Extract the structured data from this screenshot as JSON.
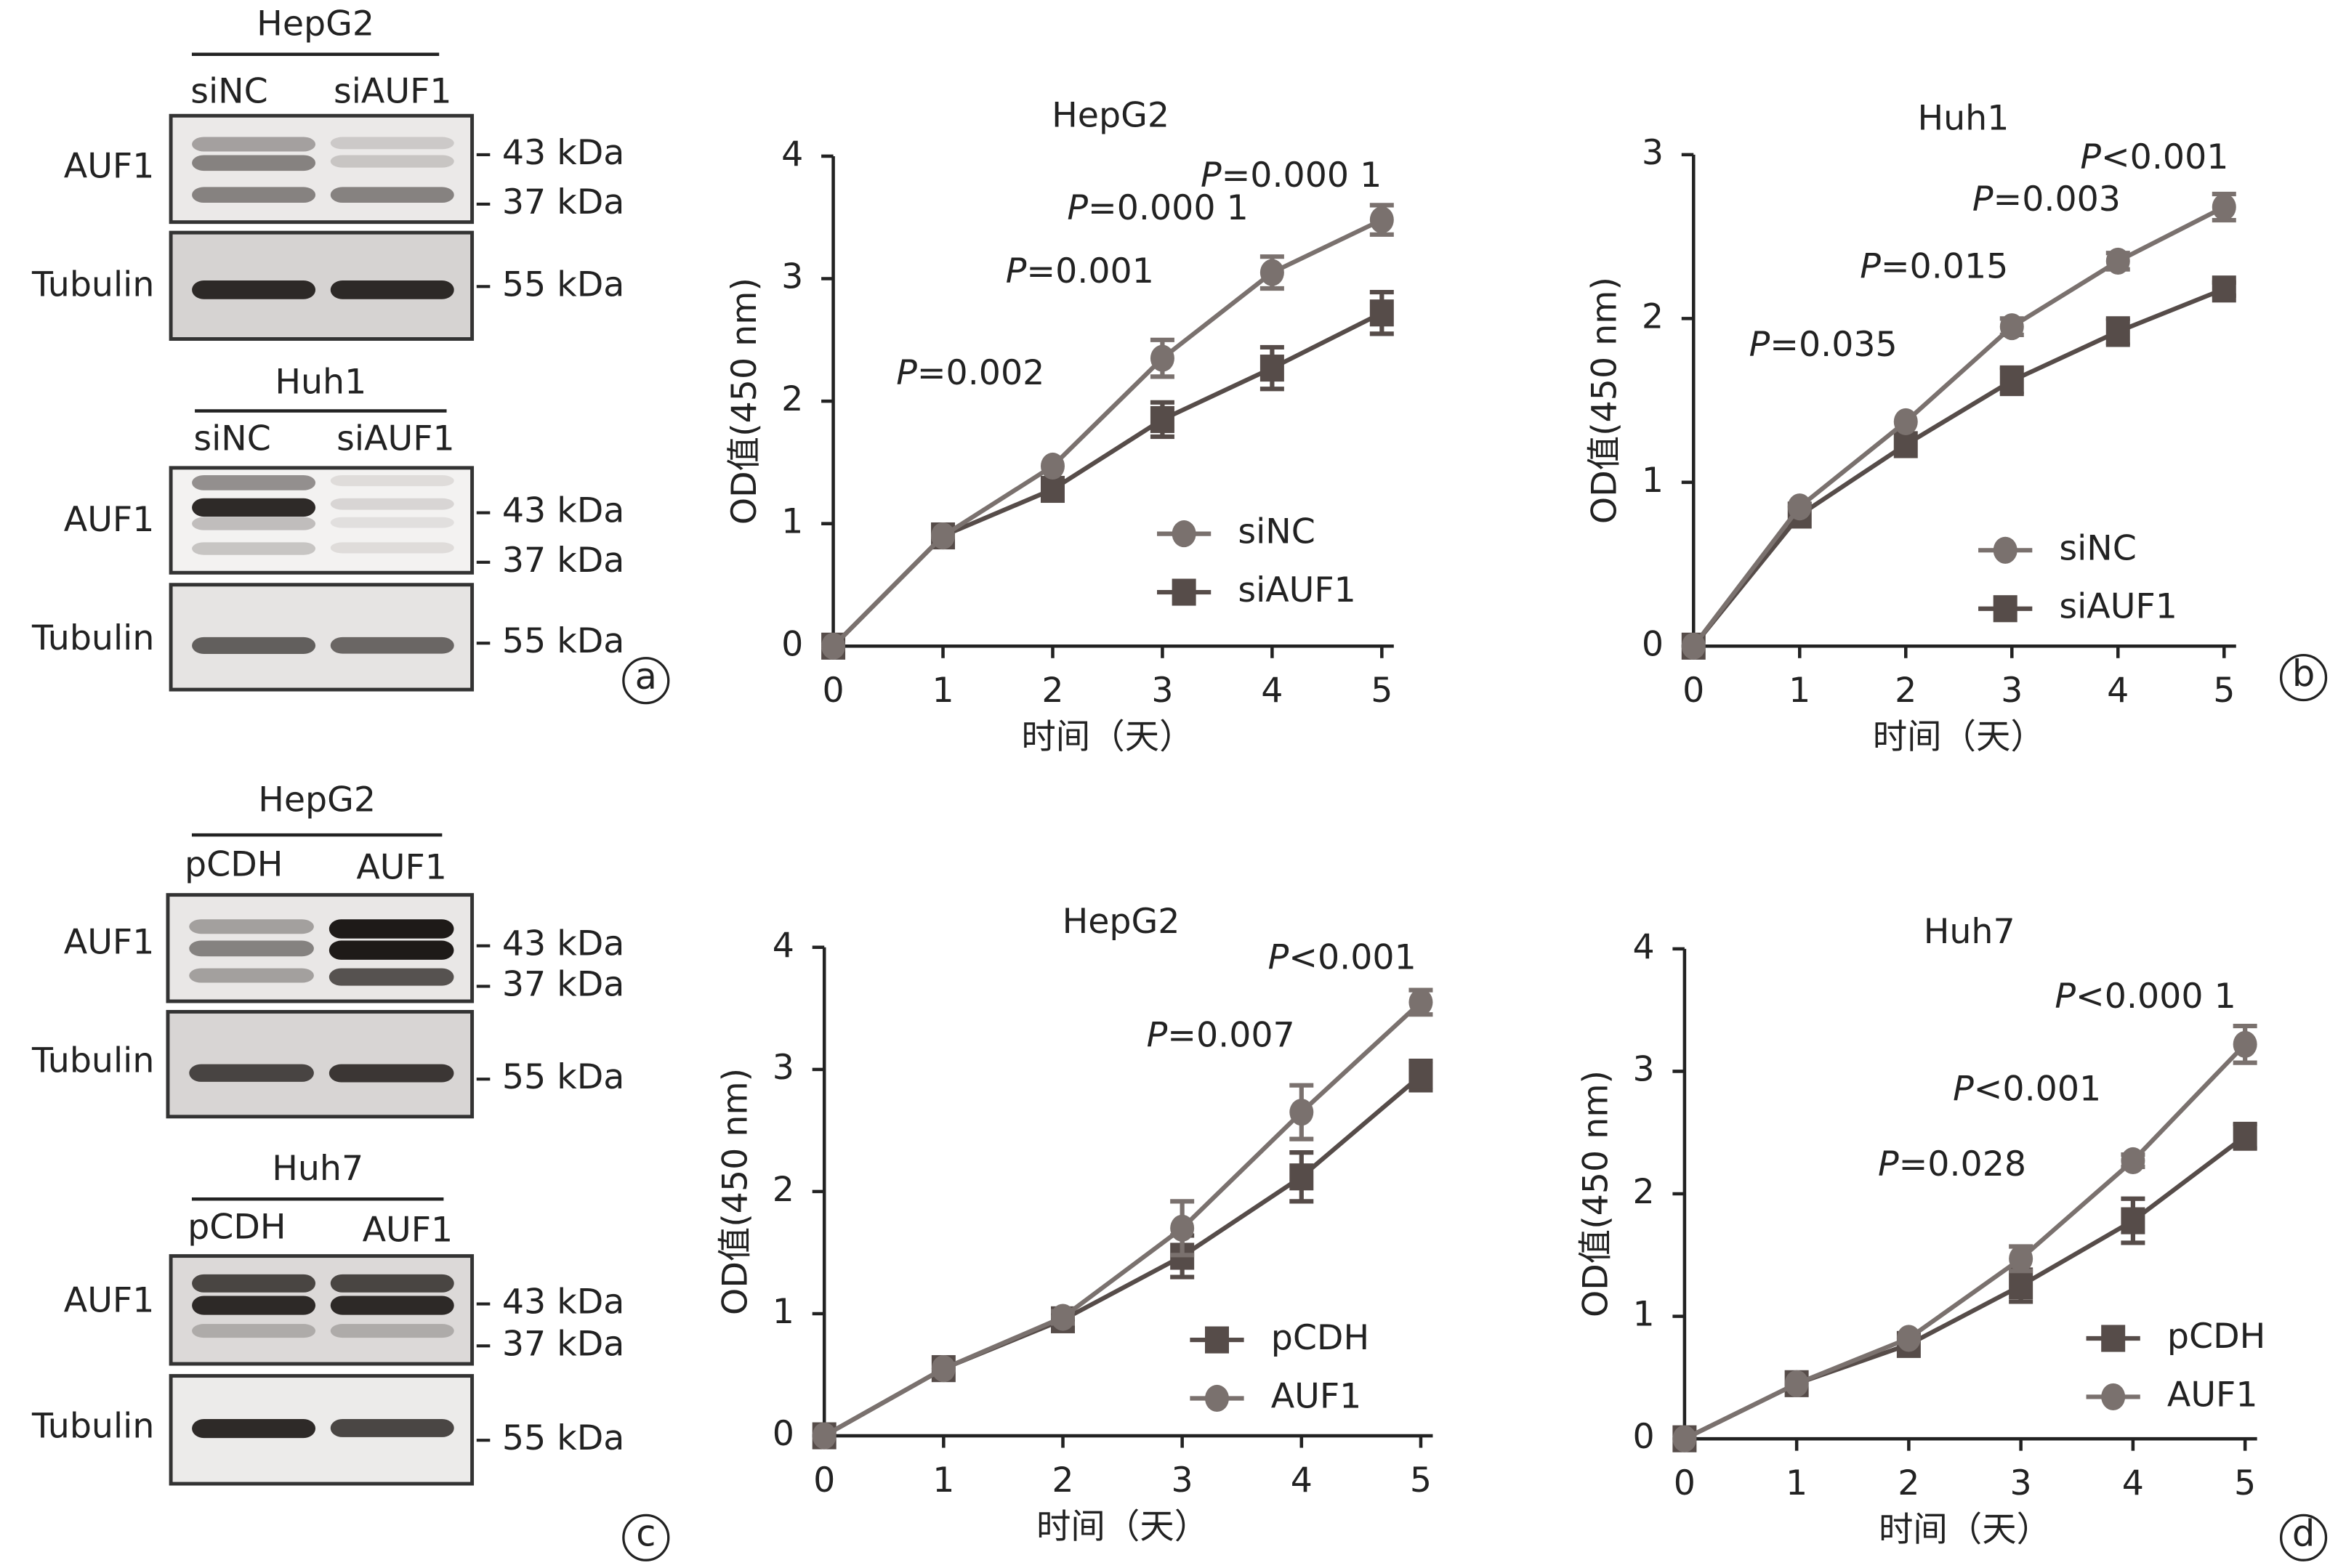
{
  "colors": {
    "circle_series": "#7a716e",
    "square_series": "#564c49",
    "text": "#222222"
  },
  "blots": [
    {
      "title": "HepG2",
      "lanes": [
        "siNC",
        "siAUF1"
      ],
      "rows": [
        {
          "label": "AUF1",
          "markers": [
            "43 kDa",
            "37 kDa"
          ]
        },
        {
          "label": "Tubulin",
          "markers": [
            "55 kDa"
          ]
        }
      ]
    },
    {
      "title": "Huh1",
      "lanes": [
        "siNC",
        "siAUF1"
      ],
      "rows": [
        {
          "label": "AUF1",
          "markers": [
            "43 kDa",
            "37 kDa"
          ]
        },
        {
          "label": "Tubulin",
          "markers": [
            "55 kDa"
          ]
        }
      ]
    },
    {
      "title": "HepG2",
      "lanes": [
        "pCDH",
        "AUF1"
      ],
      "rows": [
        {
          "label": "AUF1",
          "markers": [
            "43 kDa",
            "37 kDa"
          ]
        },
        {
          "label": "Tubulin",
          "markers": [
            "55 kDa"
          ]
        }
      ]
    },
    {
      "title": "Huh7",
      "lanes": [
        "pCDH",
        "AUF1"
      ],
      "rows": [
        {
          "label": "AUF1",
          "markers": [
            "43 kDa",
            "37 kDa"
          ]
        },
        {
          "label": "Tubulin",
          "markers": [
            "55 kDa"
          ]
        }
      ]
    }
  ],
  "panel_labels": [
    "a",
    "b",
    "c",
    "d"
  ],
  "chart_data": [
    {
      "type": "line",
      "title": "HepG2",
      "xlabel": "时间（天）",
      "ylabel": "OD值(450 nm)",
      "x": [
        0,
        1,
        2,
        3,
        4,
        5
      ],
      "xlim": [
        0,
        5
      ],
      "ylim": [
        0,
        4
      ],
      "yticks": [
        0,
        1,
        2,
        3,
        4
      ],
      "grid": false,
      "legend": "bottom-right",
      "series": [
        {
          "name": "siNC",
          "marker": "circle",
          "values": [
            0,
            0.9,
            1.47,
            2.35,
            3.05,
            3.48
          ],
          "errors": [
            0,
            0.02,
            0.03,
            0.15,
            0.13,
            0.12
          ]
        },
        {
          "name": "siAUF1",
          "marker": "square",
          "values": [
            0,
            0.9,
            1.28,
            1.85,
            2.27,
            2.72
          ],
          "errors": [
            0,
            0.02,
            0.03,
            0.14,
            0.17,
            0.17
          ]
        }
      ],
      "annotations": [
        {
          "x": 2,
          "text_prefix": "P",
          "text": "=0.002"
        },
        {
          "x": 3,
          "text_prefix": "P",
          "text": "=0.001"
        },
        {
          "x": 4,
          "text_prefix": "P",
          "text": "=0.000 1"
        },
        {
          "x": 5,
          "text_prefix": "P",
          "text": "=0.000 1"
        }
      ]
    },
    {
      "type": "line",
      "title": "Huh1",
      "xlabel": "时间（天）",
      "ylabel": "OD值(450 nm)",
      "x": [
        0,
        1,
        2,
        3,
        4,
        5
      ],
      "xlim": [
        0,
        5
      ],
      "ylim": [
        0,
        3
      ],
      "yticks": [
        0,
        1,
        2,
        3
      ],
      "grid": false,
      "legend": "bottom-right",
      "series": [
        {
          "name": "siNC",
          "marker": "circle",
          "values": [
            0,
            0.85,
            1.37,
            1.95,
            2.35,
            2.68
          ],
          "errors": [
            0,
            0.02,
            0.03,
            0.05,
            0.05,
            0.08
          ]
        },
        {
          "name": "siAUF1",
          "marker": "square",
          "values": [
            0,
            0.8,
            1.23,
            1.62,
            1.92,
            2.18
          ],
          "errors": [
            0,
            0.02,
            0.03,
            0.08,
            0.08,
            0.04
          ]
        }
      ],
      "annotations": [
        {
          "x": 2,
          "text_prefix": "P",
          "text": "=0.035"
        },
        {
          "x": 3,
          "text_prefix": "P",
          "text": "=0.015"
        },
        {
          "x": 4,
          "text_prefix": "P",
          "text": "=0.003"
        },
        {
          "x": 5,
          "text_prefix": "P",
          "text": "<0.001"
        }
      ]
    },
    {
      "type": "line",
      "title": "HepG2",
      "xlabel": "时间（天）",
      "ylabel": "OD值(450 nm)",
      "x": [
        0,
        1,
        2,
        3,
        4,
        5
      ],
      "xlim": [
        0,
        5
      ],
      "ylim": [
        0,
        4
      ],
      "yticks": [
        0,
        1,
        2,
        3,
        4
      ],
      "grid": false,
      "legend": "bottom-right",
      "series": [
        {
          "name": "pCDH",
          "marker": "square",
          "values": [
            0,
            0.55,
            0.95,
            1.47,
            2.12,
            2.95
          ],
          "errors": [
            0,
            0.02,
            0.05,
            0.17,
            0.2,
            0.12
          ]
        },
        {
          "name": "AUF1",
          "marker": "circle",
          "values": [
            0,
            0.55,
            0.97,
            1.7,
            2.65,
            3.55
          ],
          "errors": [
            0,
            0.02,
            0.05,
            0.22,
            0.22,
            0.1
          ]
        }
      ],
      "annotations": [
        {
          "x": 4,
          "text_prefix": "P",
          "text": "=0.007"
        },
        {
          "x": 5,
          "text_prefix": "P",
          "text": "<0.001"
        }
      ]
    },
    {
      "type": "line",
      "title": "Huh7",
      "xlabel": "时间（天）",
      "ylabel": "OD值(450 nm)",
      "x": [
        0,
        1,
        2,
        3,
        4,
        5
      ],
      "xlim": [
        0,
        5
      ],
      "ylim": [
        0,
        4
      ],
      "yticks": [
        0,
        1,
        2,
        3,
        4
      ],
      "grid": false,
      "legend": "bottom-right",
      "series": [
        {
          "name": "pCDH",
          "marker": "square",
          "values": [
            0,
            0.45,
            0.77,
            1.25,
            1.78,
            2.47
          ],
          "errors": [
            0,
            0.02,
            0.03,
            0.13,
            0.18,
            0.1
          ]
        },
        {
          "name": "AUF1",
          "marker": "circle",
          "values": [
            0,
            0.45,
            0.82,
            1.47,
            2.27,
            3.22
          ],
          "errors": [
            0,
            0.02,
            0.03,
            0.1,
            0.05,
            0.15
          ]
        }
      ],
      "annotations": [
        {
          "x": 3,
          "text_prefix": "P",
          "text": "=0.028"
        },
        {
          "x": 4,
          "text_prefix": "P",
          "text": "<0.001"
        },
        {
          "x": 5,
          "text_prefix": "P",
          "text": "<0.000 1"
        }
      ]
    }
  ]
}
